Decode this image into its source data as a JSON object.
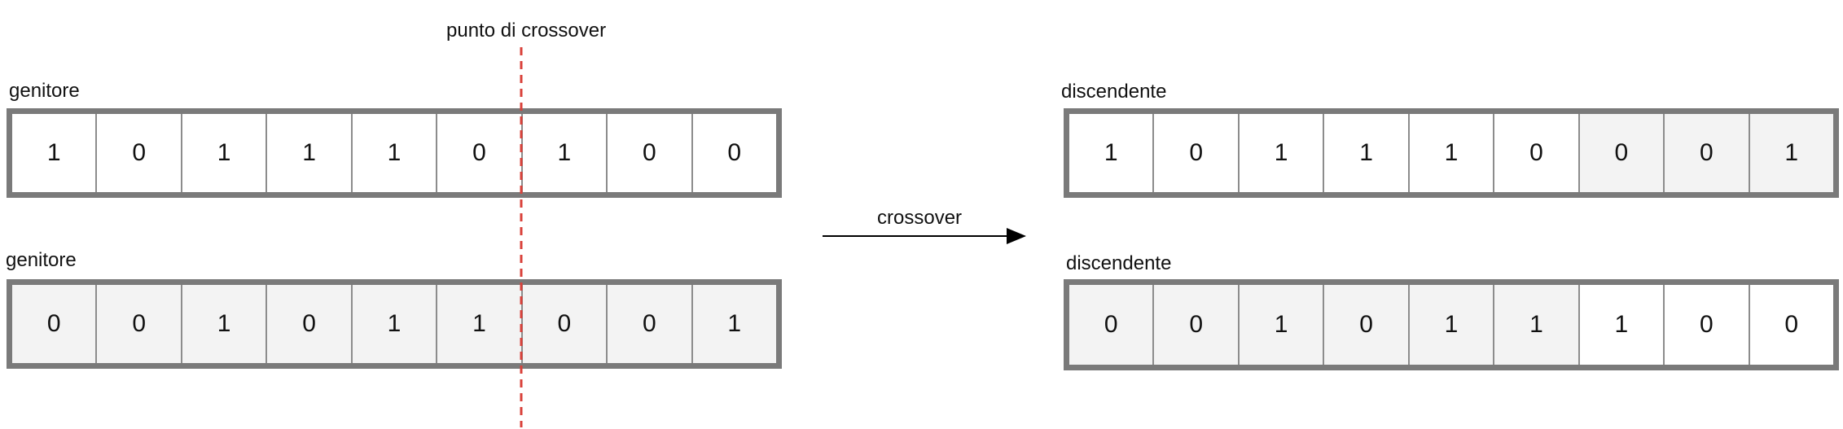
{
  "crossover_point_label": "punto di crossover",
  "arrow_label": "crossover",
  "parents": [
    {
      "label": "genitore",
      "bits": [
        "1",
        "0",
        "1",
        "1",
        "1",
        "0",
        "1",
        "0",
        "0"
      ],
      "fill": "white"
    },
    {
      "label": "genitore",
      "bits": [
        "0",
        "0",
        "1",
        "0",
        "1",
        "1",
        "0",
        "0",
        "1"
      ],
      "fill": "shaded"
    }
  ],
  "offspring": [
    {
      "label": "discendente",
      "bits": [
        "1",
        "0",
        "1",
        "1",
        "1",
        "0",
        "0",
        "0",
        "1"
      ],
      "fills": [
        "white",
        "white",
        "white",
        "white",
        "white",
        "white",
        "shaded",
        "shaded",
        "shaded"
      ]
    },
    {
      "label": "discendente",
      "bits": [
        "0",
        "0",
        "1",
        "0",
        "1",
        "1",
        "1",
        "0",
        "0"
      ],
      "fills": [
        "shaded",
        "shaded",
        "shaded",
        "shaded",
        "shaded",
        "shaded",
        "white",
        "white",
        "white"
      ]
    }
  ],
  "colors": {
    "crossover_line": "#d9413a",
    "array_border": "#7a7a7a",
    "shaded_cell": "#f3f3f3"
  }
}
